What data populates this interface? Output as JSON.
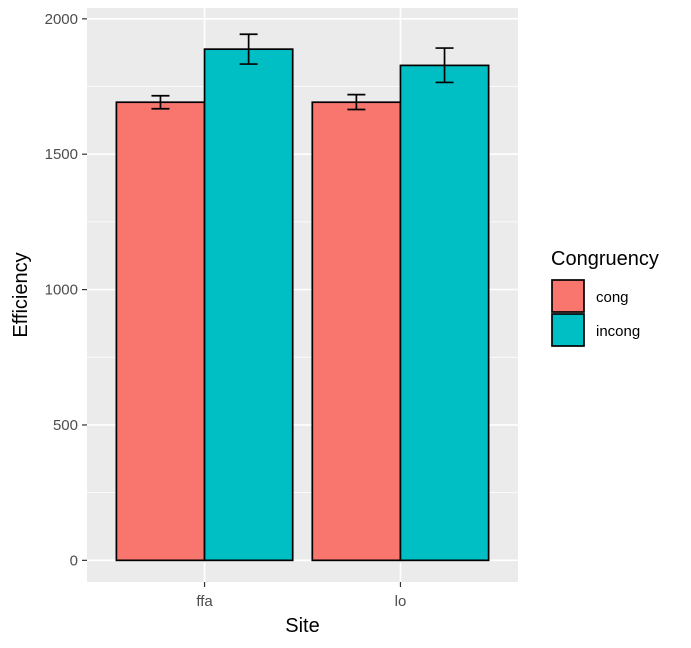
{
  "chart_data": {
    "type": "bar",
    "xlabel": "Site",
    "ylabel": "Efficiency",
    "categories": [
      "ffa",
      "lo"
    ],
    "ylim": [
      -80,
      2040
    ],
    "yticks": [
      0,
      500,
      1000,
      1500,
      2000
    ],
    "grid": true,
    "legend": {
      "title": "Congruency",
      "placement": "right"
    },
    "series": [
      {
        "name": "cong",
        "color": "#F8766D",
        "values": [
          1692,
          1692
        ],
        "error_low": [
          1668,
          1665
        ],
        "error_high": [
          1716,
          1720
        ]
      },
      {
        "name": "incong",
        "color": "#00BFC4",
        "values": [
          1888,
          1828
        ],
        "error_low": [
          1833,
          1765
        ],
        "error_high": [
          1943,
          1892
        ]
      }
    ]
  }
}
